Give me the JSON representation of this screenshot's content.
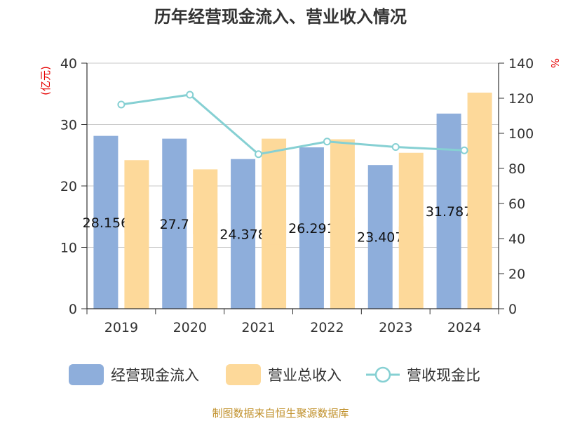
{
  "chart_data": {
    "type": "bar",
    "title": "历年经营现金流入、营业收入情况",
    "categories": [
      "2019",
      "2020",
      "2021",
      "2022",
      "2023",
      "2024"
    ],
    "series": [
      {
        "name": "经营现金流入",
        "type": "bar",
        "axis": "left",
        "color": "#8eaedb",
        "values": [
          28.156,
          27.7,
          24.378,
          26.291,
          23.407,
          31.787
        ],
        "labels": [
          "28.156",
          "27.7",
          "24.378",
          "26.291",
          "23.407",
          "31.787"
        ]
      },
      {
        "name": "营业总收入",
        "type": "bar",
        "axis": "left",
        "color": "#fdd99a",
        "values": [
          24.2,
          22.7,
          27.7,
          27.6,
          25.4,
          35.2
        ]
      },
      {
        "name": "营收现金比",
        "type": "line",
        "axis": "right",
        "color": "#86d0d3",
        "values": [
          116.4,
          122.0,
          88.1,
          95.3,
          92.2,
          90.3
        ]
      }
    ],
    "y_left": {
      "unit": "(亿元)",
      "ylim": [
        0,
        40
      ],
      "ticks": [
        "0",
        "10",
        "20",
        "30",
        "40"
      ]
    },
    "y_right": {
      "unit": "%",
      "ylim": [
        0,
        140
      ],
      "ticks": [
        "0",
        "20",
        "40",
        "60",
        "80",
        "100",
        "120",
        "140"
      ]
    },
    "grid": true,
    "legend_position": "bottom"
  },
  "legend": {
    "items": [
      {
        "label": "经营现金流入",
        "color": "#8eaedb"
      },
      {
        "label": "营业总收入",
        "color": "#fdd99a"
      },
      {
        "label": "营收现金比",
        "color": "#86d0d3"
      }
    ]
  },
  "footer": {
    "source": "制图数据来自恒生聚源数据库"
  }
}
